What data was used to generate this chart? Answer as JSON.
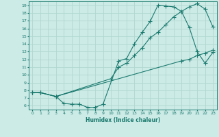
{
  "xlabel": "Humidex (Indice chaleur)",
  "bg_color": "#cceae6",
  "grid_color": "#b0d8d0",
  "line_color": "#1a7a6e",
  "xlim": [
    -0.5,
    23.5
  ],
  "ylim": [
    5.5,
    19.5
  ],
  "xticks": [
    0,
    1,
    2,
    3,
    4,
    5,
    6,
    7,
    8,
    9,
    10,
    11,
    12,
    13,
    14,
    15,
    16,
    17,
    18,
    19,
    20,
    21,
    22,
    23
  ],
  "yticks": [
    6,
    7,
    8,
    9,
    10,
    11,
    12,
    13,
    14,
    15,
    16,
    17,
    18,
    19
  ],
  "line1_x": [
    0,
    1,
    3,
    4,
    5,
    6,
    7,
    8,
    9,
    11,
    12,
    13,
    14,
    15,
    16,
    17,
    18,
    19,
    20,
    21,
    22,
    23
  ],
  "line1_y": [
    7.7,
    7.7,
    7.2,
    6.3,
    6.2,
    6.2,
    5.8,
    5.8,
    6.2,
    11.8,
    12.1,
    14.0,
    15.5,
    16.9,
    19.0,
    18.9,
    18.8,
    18.2,
    16.1,
    13.0,
    11.5,
    12.9
  ],
  "line2_x": [
    0,
    1,
    3,
    10,
    11,
    12,
    13,
    14,
    15,
    16,
    17,
    18,
    19,
    20,
    21,
    22,
    23
  ],
  "line2_y": [
    7.7,
    7.7,
    7.2,
    9.5,
    11.0,
    11.5,
    12.5,
    13.5,
    14.8,
    15.5,
    16.5,
    17.5,
    18.2,
    18.8,
    19.2,
    18.5,
    16.2
  ],
  "line3_x": [
    0,
    1,
    3,
    19,
    20,
    21,
    22,
    23
  ],
  "line3_y": [
    7.7,
    7.7,
    7.2,
    11.8,
    12.0,
    12.5,
    12.8,
    13.2
  ]
}
